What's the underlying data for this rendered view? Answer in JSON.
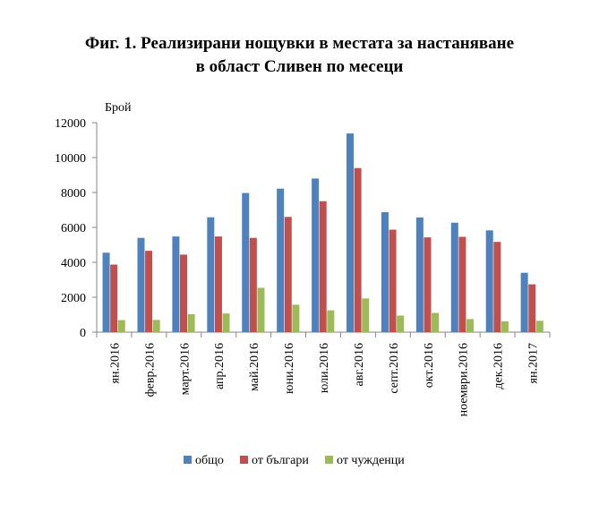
{
  "title_line1": "Фиг. 1. Реализирани нощувки в местата за настаняване",
  "title_line2": "в област Сливен по месеци",
  "chart_data": {
    "type": "bar",
    "title": "Фиг. 1. Реализирани нощувки в местата за настаняване в област Сливен по месеци",
    "ylabel": "Брой",
    "xlabel": "",
    "ylim": [
      0,
      12000
    ],
    "yticks": [
      0,
      2000,
      4000,
      6000,
      8000,
      10000,
      12000
    ],
    "grid": false,
    "legend_position": "bottom",
    "categories": [
      "ян.2016",
      "февр.2016",
      "март.2016",
      "апр.2016",
      "май.2016",
      "юни.2016",
      "юли.2016",
      "авг.2016",
      "септ.2016",
      "окт.2016",
      "ноември.2016",
      "дек.2016",
      "ян.2017"
    ],
    "series": [
      {
        "name": "общо",
        "color": "#4F81BD",
        "values": [
          4550,
          5400,
          5480,
          6580,
          7970,
          8220,
          8800,
          11380,
          6870,
          6570,
          6270,
          5830,
          3400
        ]
      },
      {
        "name": "от българи",
        "color": "#C0504D",
        "values": [
          3870,
          4660,
          4440,
          5480,
          5400,
          6600,
          7500,
          9400,
          5870,
          5430,
          5460,
          5170,
          2740
        ]
      },
      {
        "name": "от чужденци",
        "color": "#9BBB59",
        "values": [
          690,
          700,
          1030,
          1070,
          2540,
          1570,
          1250,
          1930,
          950,
          1100,
          750,
          620,
          650
        ]
      }
    ]
  }
}
